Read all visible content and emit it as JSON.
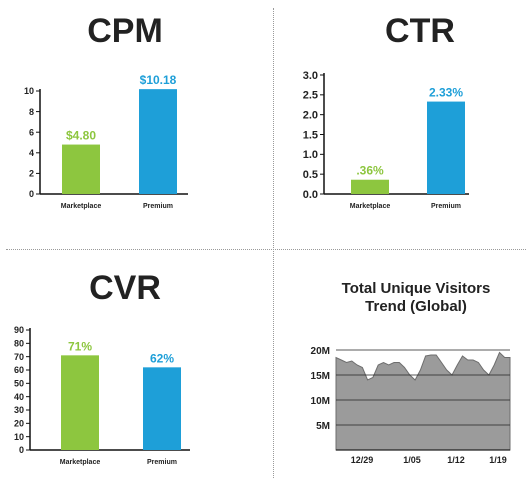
{
  "colors": {
    "marketplace": "#8dc63f",
    "premium": "#1e9fd8",
    "area_fill": "#9b9b9b",
    "axis": "#111111"
  },
  "chart_data": [
    {
      "id": "cpm",
      "type": "bar",
      "title": "CPM",
      "categories": [
        "Marketplace",
        "Premium"
      ],
      "values": [
        4.8,
        10.18
      ],
      "value_labels": [
        "$4.80",
        "$10.18"
      ],
      "bar_colors": [
        "#8dc63f",
        "#1e9fd8"
      ],
      "yticks": [
        "0",
        "2",
        "4",
        "6",
        "8",
        "10"
      ],
      "ylim": [
        0,
        10
      ],
      "grid": false
    },
    {
      "id": "ctr",
      "type": "bar",
      "title": "CTR",
      "categories": [
        "Marketplace",
        "Premium"
      ],
      "values": [
        0.36,
        2.33
      ],
      "value_labels": [
        ".36%",
        "2.33%"
      ],
      "bar_colors": [
        "#8dc63f",
        "#1e9fd8"
      ],
      "yticks": [
        "0.0",
        "0.5",
        "1.0",
        "1.5",
        "2.0",
        "2.5",
        "3.0"
      ],
      "ylim": [
        0,
        3
      ],
      "grid": false
    },
    {
      "id": "cvr",
      "type": "bar",
      "title": "CVR",
      "categories": [
        "Marketplace",
        "Premium"
      ],
      "values": [
        71,
        62
      ],
      "value_labels": [
        "71%",
        "62%"
      ],
      "bar_colors": [
        "#8dc63f",
        "#1e9fd8"
      ],
      "yticks": [
        "0",
        "10",
        "20",
        "30",
        "40",
        "50",
        "60",
        "70",
        "80",
        "90"
      ],
      "ylim": [
        0,
        90
      ],
      "grid": false
    },
    {
      "id": "visitors",
      "type": "area",
      "title": "Total Unique Visitors Trend (Global)",
      "title_lines": [
        "Total Unique Visitors",
        "Trend (Global)"
      ],
      "xticks": [
        "12/29",
        "1/05",
        "1/12",
        "1/19"
      ],
      "yticks": [
        "5M",
        "10M",
        "15M",
        "20M"
      ],
      "ylim": [
        0,
        20
      ],
      "grid": true,
      "values": [
        18.5,
        18,
        17.5,
        17.8,
        17,
        16.5,
        14,
        14.5,
        17,
        17.5,
        17,
        17.5,
        17.5,
        16.5,
        15,
        14,
        16,
        18.8,
        19,
        19,
        17.5,
        16,
        15,
        17,
        18.8,
        18,
        18,
        17.5,
        16,
        15,
        17,
        19.5,
        18.5,
        18.5
      ]
    }
  ]
}
